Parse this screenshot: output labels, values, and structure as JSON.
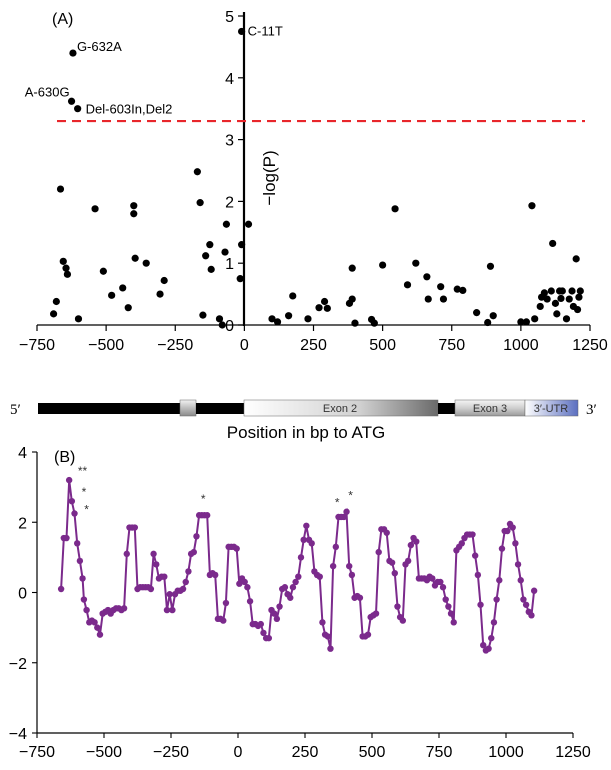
{
  "chart_data": [
    {
      "type": "scatter",
      "panel_label": "(A)",
      "ylabel": "−log(P)",
      "xlim": [
        -750,
        1250
      ],
      "ylim": [
        0,
        5
      ],
      "xticks": [
        -750,
        -500,
        -250,
        0,
        250,
        500,
        750,
        1000,
        1250
      ],
      "yticks": [
        0,
        1,
        2,
        3,
        4,
        5
      ],
      "xtick_labels": [
        "−750",
        "−500",
        "−250",
        "0",
        "250",
        "500",
        "750",
        "1000",
        "1250"
      ],
      "ytick_labels": [
        "0",
        "1",
        "2",
        "3",
        "4",
        "5"
      ],
      "threshold": 3.3,
      "threshold_color": "#e8262b",
      "point_color": "#000000",
      "annotations": [
        {
          "text": "C-11T",
          "x": -10,
          "y": 4.75
        },
        {
          "text": "G-632A",
          "x": -620,
          "y": 4.4
        },
        {
          "text": "A-630G",
          "x": -625,
          "y": 3.62
        },
        {
          "text": "Del-603In,Del2",
          "x": -603,
          "y": 3.5
        }
      ],
      "points": [
        [
          -690,
          0.18
        ],
        [
          -680,
          0.38
        ],
        [
          -665,
          2.2
        ],
        [
          -655,
          1.03
        ],
        [
          -640,
          0.82
        ],
        [
          -645,
          0.92
        ],
        [
          -600,
          0.1
        ],
        [
          -540,
          1.88
        ],
        [
          -510,
          0.87
        ],
        [
          -480,
          0.48
        ],
        [
          -440,
          0.6
        ],
        [
          -420,
          0.28
        ],
        [
          -400,
          1.8
        ],
        [
          -400,
          1.93
        ],
        [
          -395,
          1.08
        ],
        [
          -355,
          1.0
        ],
        [
          -305,
          0.5
        ],
        [
          -290,
          0.72
        ],
        [
          -170,
          2.48
        ],
        [
          -160,
          1.98
        ],
        [
          -150,
          0.16
        ],
        [
          -140,
          1.12
        ],
        [
          -125,
          1.3
        ],
        [
          -120,
          0.9
        ],
        [
          -90,
          0.1
        ],
        [
          -80,
          0.0
        ],
        [
          -70,
          1.18
        ],
        [
          -65,
          1.63
        ],
        [
          -15,
          0.75
        ],
        [
          -10,
          1.3
        ],
        [
          15,
          1.63
        ],
        [
          100,
          0.1
        ],
        [
          120,
          0.05
        ],
        [
          160,
          0.15
        ],
        [
          175,
          0.47
        ],
        [
          230,
          0.1
        ],
        [
          270,
          0.28
        ],
        [
          290,
          0.38
        ],
        [
          300,
          0.27
        ],
        [
          380,
          0.35
        ],
        [
          390,
          0.42
        ],
        [
          390,
          0.92
        ],
        [
          400,
          0.03
        ],
        [
          460,
          0.09
        ],
        [
          470,
          0.03
        ],
        [
          500,
          0.97
        ],
        [
          545,
          1.88
        ],
        [
          590,
          0.65
        ],
        [
          620,
          1.0
        ],
        [
          660,
          0.78
        ],
        [
          665,
          0.42
        ],
        [
          710,
          0.62
        ],
        [
          720,
          0.42
        ],
        [
          770,
          0.58
        ],
        [
          790,
          0.56
        ],
        [
          840,
          0.2
        ],
        [
          880,
          0.04
        ],
        [
          890,
          0.95
        ],
        [
          900,
          0.15
        ],
        [
          1000,
          0.05
        ],
        [
          1020,
          0.05
        ],
        [
          1040,
          1.93
        ],
        [
          1050,
          0.1
        ],
        [
          1070,
          0.3
        ],
        [
          1075,
          0.45
        ],
        [
          1085,
          0.52
        ],
        [
          1095,
          0.42
        ],
        [
          1110,
          0.55
        ],
        [
          1115,
          1.32
        ],
        [
          1125,
          0.35
        ],
        [
          1130,
          0.18
        ],
        [
          1140,
          0.55
        ],
        [
          1145,
          0.43
        ],
        [
          1150,
          0.55
        ],
        [
          1165,
          0.1
        ],
        [
          1175,
          0.42
        ],
        [
          1185,
          0.55
        ],
        [
          1190,
          0.3
        ],
        [
          1200,
          1.07
        ],
        [
          1205,
          0.25
        ],
        [
          1210,
          0.45
        ],
        [
          1215,
          0.55
        ]
      ]
    },
    {
      "type": "line",
      "panel_label": "(B)",
      "xlim": [
        -750,
        1250
      ],
      "ylim": [
        -4,
        4
      ],
      "xticks": [
        -750,
        -500,
        -250,
        0,
        250,
        500,
        750,
        1000,
        1250
      ],
      "yticks": [
        -4,
        -2,
        0,
        2,
        4
      ],
      "xtick_labels": [
        "−750",
        "−500",
        "−250",
        "0",
        "250",
        "500",
        "750",
        "1000",
        "1250"
      ],
      "ytick_labels": [
        "−4",
        "−2",
        "0",
        "2",
        "4"
      ],
      "line_color": "#7b2a8c",
      "stars": [
        {
          "text": "**",
          "x": -580,
          "y": 3.35
        },
        {
          "text": "*",
          "x": -575,
          "y": 2.75
        },
        {
          "text": "*",
          "x": -565,
          "y": 2.25
        },
        {
          "text": "*",
          "x": -130,
          "y": 2.55
        },
        {
          "text": "*",
          "x": 370,
          "y": 2.45
        },
        {
          "text": "*",
          "x": 420,
          "y": 2.65
        }
      ],
      "points": [
        [
          -660,
          0.1
        ],
        [
          -650,
          1.55
        ],
        [
          -640,
          1.55
        ],
        [
          -630,
          3.2
        ],
        [
          -620,
          2.6
        ],
        [
          -610,
          2.25
        ],
        [
          -600,
          1.4
        ],
        [
          -590,
          0.9
        ],
        [
          -580,
          0.4
        ],
        [
          -575,
          -0.2
        ],
        [
          -565,
          -0.5
        ],
        [
          -555,
          -0.85
        ],
        [
          -545,
          -0.8
        ],
        [
          -535,
          -0.85
        ],
        [
          -525,
          -1.0
        ],
        [
          -515,
          -1.2
        ],
        [
          -505,
          -0.6
        ],
        [
          -495,
          -0.55
        ],
        [
          -485,
          -0.5
        ],
        [
          -475,
          -0.6
        ],
        [
          -465,
          -0.5
        ],
        [
          -455,
          -0.45
        ],
        [
          -445,
          -0.45
        ],
        [
          -435,
          -0.5
        ],
        [
          -425,
          -0.45
        ],
        [
          -415,
          1.1
        ],
        [
          -405,
          1.85
        ],
        [
          -395,
          1.85
        ],
        [
          -385,
          1.85
        ],
        [
          -375,
          0.1
        ],
        [
          -365,
          0.15
        ],
        [
          -355,
          0.15
        ],
        [
          -345,
          0.15
        ],
        [
          -335,
          0.15
        ],
        [
          -325,
          0.1
        ],
        [
          -315,
          1.1
        ],
        [
          -305,
          0.8
        ],
        [
          -295,
          0.4
        ],
        [
          -285,
          0.45
        ],
        [
          -275,
          0.45
        ],
        [
          -265,
          -0.5
        ],
        [
          -255,
          -0.05
        ],
        [
          -245,
          -0.5
        ],
        [
          -235,
          -0.05
        ],
        [
          -225,
          0.05
        ],
        [
          -215,
          0.05
        ],
        [
          -205,
          0.1
        ],
        [
          -195,
          0.3
        ],
        [
          -185,
          0.6
        ],
        [
          -175,
          1.1
        ],
        [
          -165,
          1.15
        ],
        [
          -155,
          1.6
        ],
        [
          -145,
          2.2
        ],
        [
          -135,
          2.2
        ],
        [
          -125,
          2.2
        ],
        [
          -115,
          2.2
        ],
        [
          -105,
          0.5
        ],
        [
          -95,
          0.55
        ],
        [
          -85,
          0.5
        ],
        [
          -75,
          -0.75
        ],
        [
          -65,
          -0.75
        ],
        [
          -55,
          -0.8
        ],
        [
          -45,
          -0.3
        ],
        [
          -35,
          1.3
        ],
        [
          -25,
          1.3
        ],
        [
          -15,
          1.3
        ],
        [
          -5,
          1.25
        ],
        [
          5,
          0.25
        ],
        [
          15,
          0.4
        ],
        [
          25,
          0.3
        ],
        [
          35,
          0.15
        ],
        [
          45,
          -0.25
        ],
        [
          55,
          -0.9
        ],
        [
          65,
          -0.9
        ],
        [
          75,
          -0.95
        ],
        [
          85,
          -0.9
        ],
        [
          95,
          -1.15
        ],
        [
          105,
          -1.3
        ],
        [
          115,
          -1.3
        ],
        [
          125,
          -0.5
        ],
        [
          135,
          -0.6
        ],
        [
          145,
          -0.75
        ],
        [
          155,
          -0.4
        ],
        [
          165,
          0.1
        ],
        [
          175,
          0.15
        ],
        [
          185,
          -0.05
        ],
        [
          195,
          -0.15
        ],
        [
          205,
          0.15
        ],
        [
          215,
          0.3
        ],
        [
          225,
          0.45
        ],
        [
          235,
          1.0
        ],
        [
          245,
          1.5
        ],
        [
          255,
          1.9
        ],
        [
          265,
          1.5
        ],
        [
          275,
          1.4
        ],
        [
          285,
          0.6
        ],
        [
          295,
          0.5
        ],
        [
          305,
          0.45
        ],
        [
          315,
          -0.85
        ],
        [
          325,
          -1.2
        ],
        [
          335,
          -1.25
        ],
        [
          345,
          -1.6
        ],
        [
          355,
          0.75
        ],
        [
          365,
          1.3
        ],
        [
          375,
          2.15
        ],
        [
          385,
          2.15
        ],
        [
          395,
          2.15
        ],
        [
          405,
          2.3
        ],
        [
          415,
          0.75
        ],
        [
          425,
          0.5
        ],
        [
          435,
          -0.15
        ],
        [
          445,
          -0.1
        ],
        [
          455,
          -0.15
        ],
        [
          465,
          -1.25
        ],
        [
          475,
          -1.25
        ],
        [
          485,
          -1.2
        ],
        [
          495,
          -0.7
        ],
        [
          505,
          -0.65
        ],
        [
          515,
          -0.6
        ],
        [
          525,
          1.15
        ],
        [
          535,
          1.8
        ],
        [
          545,
          1.8
        ],
        [
          555,
          1.7
        ],
        [
          565,
          0.9
        ],
        [
          575,
          0.85
        ],
        [
          585,
          0.55
        ],
        [
          595,
          -0.4
        ],
        [
          605,
          -0.7
        ],
        [
          615,
          -0.8
        ],
        [
          625,
          0.8
        ],
        [
          635,
          0.9
        ],
        [
          645,
          1.35
        ],
        [
          655,
          1.55
        ],
        [
          665,
          1.45
        ],
        [
          675,
          0.4
        ],
        [
          685,
          0.4
        ],
        [
          695,
          0.4
        ],
        [
          705,
          0.35
        ],
        [
          715,
          0.45
        ],
        [
          725,
          0.4
        ],
        [
          735,
          0.2
        ],
        [
          745,
          0.3
        ],
        [
          755,
          0.3
        ],
        [
          765,
          0.15
        ],
        [
          775,
          -0.2
        ],
        [
          785,
          -0.4
        ],
        [
          795,
          -0.6
        ],
        [
          805,
          -0.85
        ],
        [
          815,
          1.2
        ],
        [
          825,
          1.3
        ],
        [
          835,
          1.4
        ],
        [
          845,
          1.55
        ],
        [
          855,
          1.65
        ],
        [
          865,
          1.65
        ],
        [
          875,
          1.65
        ],
        [
          885,
          1.05
        ],
        [
          895,
          0.5
        ],
        [
          905,
          -0.35
        ],
        [
          915,
          -1.5
        ],
        [
          925,
          -1.65
        ],
        [
          935,
          -1.6
        ],
        [
          945,
          -1.3
        ],
        [
          955,
          -0.85
        ],
        [
          965,
          -0.2
        ],
        [
          975,
          0.35
        ],
        [
          985,
          1.25
        ],
        [
          995,
          1.75
        ],
        [
          1005,
          1.75
        ],
        [
          1015,
          1.95
        ],
        [
          1025,
          1.85
        ],
        [
          1035,
          1.4
        ],
        [
          1045,
          0.8
        ],
        [
          1055,
          0.35
        ],
        [
          1065,
          -0.2
        ],
        [
          1075,
          -0.35
        ],
        [
          1085,
          -0.55
        ],
        [
          1095,
          -0.65
        ],
        [
          1105,
          0.05
        ]
      ]
    }
  ],
  "gene": {
    "left_label": "5′",
    "right_label": "3′",
    "exon2_label": "Exon 2",
    "exon3_label": "Exon 3",
    "utr_label": "3′-UTR"
  },
  "x_caption": "Position in bp to ATG"
}
